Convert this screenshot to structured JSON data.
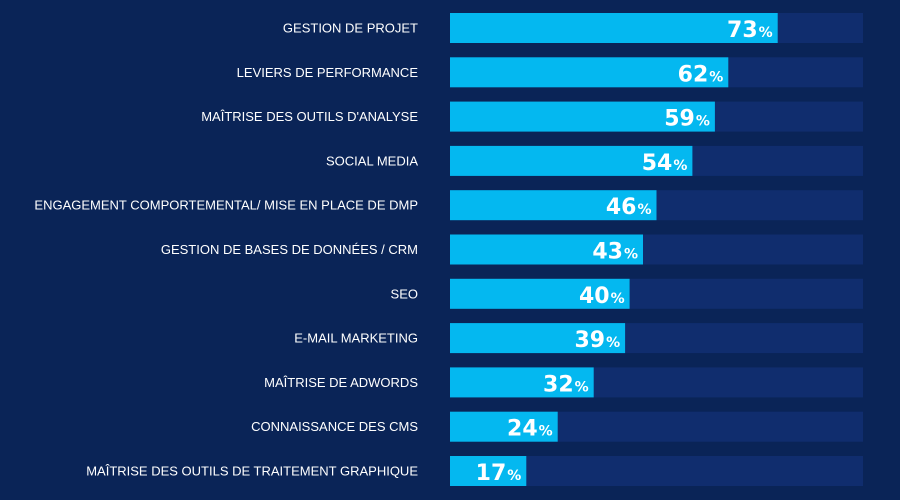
{
  "colors": {
    "background": "#0a2457",
    "track": "#102d6e",
    "bar": "#04b8f0",
    "text": "#ffffff"
  },
  "chart_data": {
    "type": "bar",
    "orientation": "horizontal",
    "categories": [
      "GESTION DE PROJET",
      "LEVIERS DE PERFORMANCE",
      "MAÎTRISE DES OUTILS D'ANALYSE",
      "SOCIAL MEDIA",
      "ENGAGEMENT COMPORTEMENTAL/ MISE EN PLACE DE DMP",
      "GESTION DE BASES DE DONNÉES / CRM",
      "SEO",
      "E-MAIL MARKETING",
      "MAÎTRISE DE ADWORDS",
      "CONNAISSANCE DES CMS",
      "MAÎTRISE DES OUTILS DE TRAITEMENT GRAPHIQUE"
    ],
    "values": [
      73,
      62,
      59,
      54,
      46,
      43,
      40,
      39,
      32,
      24,
      17
    ],
    "value_suffix": "%",
    "title": "",
    "xlabel": "",
    "ylabel": "",
    "xlim": [
      0,
      92
    ],
    "grid": false,
    "legend": "none"
  }
}
